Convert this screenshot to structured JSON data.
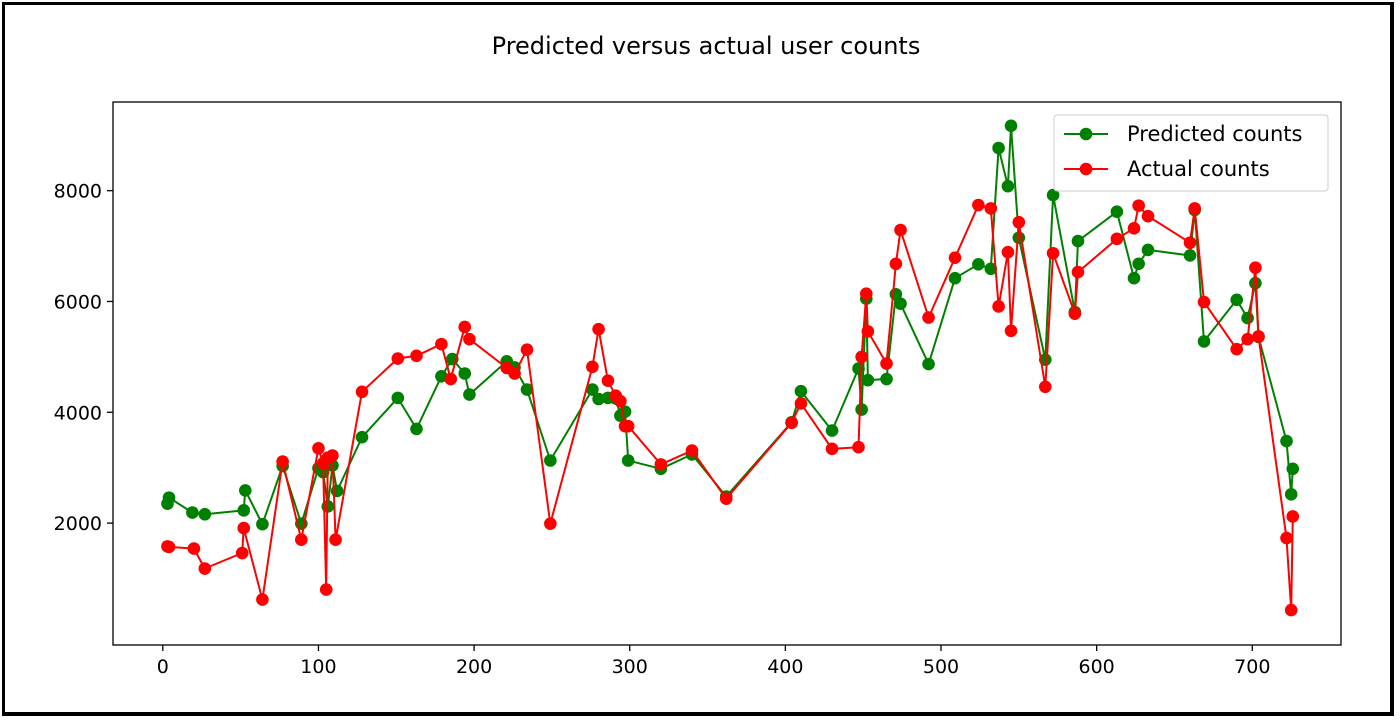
{
  "chart_data": {
    "type": "line",
    "title": "Predicted versus actual user counts",
    "xlabel": "",
    "ylabel": "",
    "xlim": [
      -32,
      757
    ],
    "ylim": [
      -200,
      9600
    ],
    "xticks": [
      0,
      100,
      200,
      300,
      400,
      500,
      600,
      700
    ],
    "yticks": [
      2000,
      4000,
      6000,
      8000
    ],
    "grid": false,
    "legend_position": "top-right",
    "series": [
      {
        "name": "Predicted counts",
        "color": "#008000",
        "marker": "circle",
        "x": [
          3,
          4,
          19,
          27,
          52,
          53,
          64,
          77,
          89,
          100,
          103,
          106,
          109,
          112,
          128,
          151,
          163,
          179,
          186,
          194,
          197,
          221,
          226,
          234,
          249,
          276,
          280,
          286,
          291,
          294,
          297,
          299,
          320,
          340,
          362,
          404,
          410,
          430,
          447,
          449,
          452,
          453,
          465,
          471,
          474,
          492,
          509,
          524,
          532,
          537,
          543,
          545,
          550,
          567,
          572,
          586,
          588,
          613,
          624,
          627,
          633,
          660,
          663,
          669,
          690,
          697,
          702,
          704,
          722,
          725,
          726
        ],
        "values": [
          2350,
          2460,
          2190,
          2160,
          2230,
          2590,
          1980,
          3030,
          1990,
          2990,
          2920,
          2300,
          3040,
          2580,
          3550,
          4260,
          3700,
          4650,
          4960,
          4700,
          4320,
          4920,
          4810,
          4410,
          3130,
          4410,
          4240,
          4260,
          4250,
          3940,
          4010,
          3130,
          2980,
          3240,
          2480,
          3820,
          4380,
          3670,
          4790,
          4050,
          6050,
          4580,
          4600,
          6130,
          5960,
          4870,
          6420,
          6670,
          6590,
          8770,
          8080,
          9170,
          7150,
          4950,
          7920,
          5810,
          7090,
          7620,
          6420,
          6680,
          6930,
          6830,
          7650,
          5280,
          6030,
          5700,
          6330,
          5360,
          3480,
          2520,
          2980
        ]
      },
      {
        "name": "Actual counts",
        "color": "#ff0000",
        "marker": "circle",
        "x": [
          3,
          4,
          20,
          27,
          51,
          52,
          64,
          77,
          89,
          100,
          103,
          105,
          106,
          109,
          111,
          128,
          151,
          163,
          179,
          185,
          194,
          197,
          221,
          226,
          234,
          249,
          276,
          280,
          286,
          291,
          294,
          297,
          299,
          320,
          340,
          362,
          404,
          410,
          430,
          447,
          449,
          452,
          453,
          465,
          471,
          474,
          492,
          509,
          524,
          532,
          537,
          543,
          545,
          550,
          567,
          572,
          586,
          588,
          613,
          624,
          627,
          633,
          660,
          663,
          669,
          690,
          697,
          702,
          704,
          722,
          725,
          726
        ],
        "values": [
          1580,
          1570,
          1540,
          1180,
          1460,
          1910,
          620,
          3110,
          1700,
          3350,
          3080,
          800,
          3180,
          3220,
          1700,
          4370,
          4970,
          5020,
          5230,
          4600,
          5540,
          5320,
          4800,
          4700,
          5130,
          1990,
          4820,
          5500,
          4570,
          4300,
          4200,
          3750,
          3750,
          3060,
          3310,
          2440,
          3810,
          4160,
          3340,
          3370,
          5000,
          6140,
          5460,
          4880,
          6680,
          7290,
          5710,
          6790,
          7740,
          7680,
          5910,
          6890,
          5470,
          7430,
          4460,
          6870,
          5780,
          6530,
          7130,
          7320,
          7730,
          7540,
          7060,
          7680,
          5990,
          5140,
          5320,
          6610,
          5370,
          1730,
          430,
          2120
        ]
      }
    ]
  }
}
